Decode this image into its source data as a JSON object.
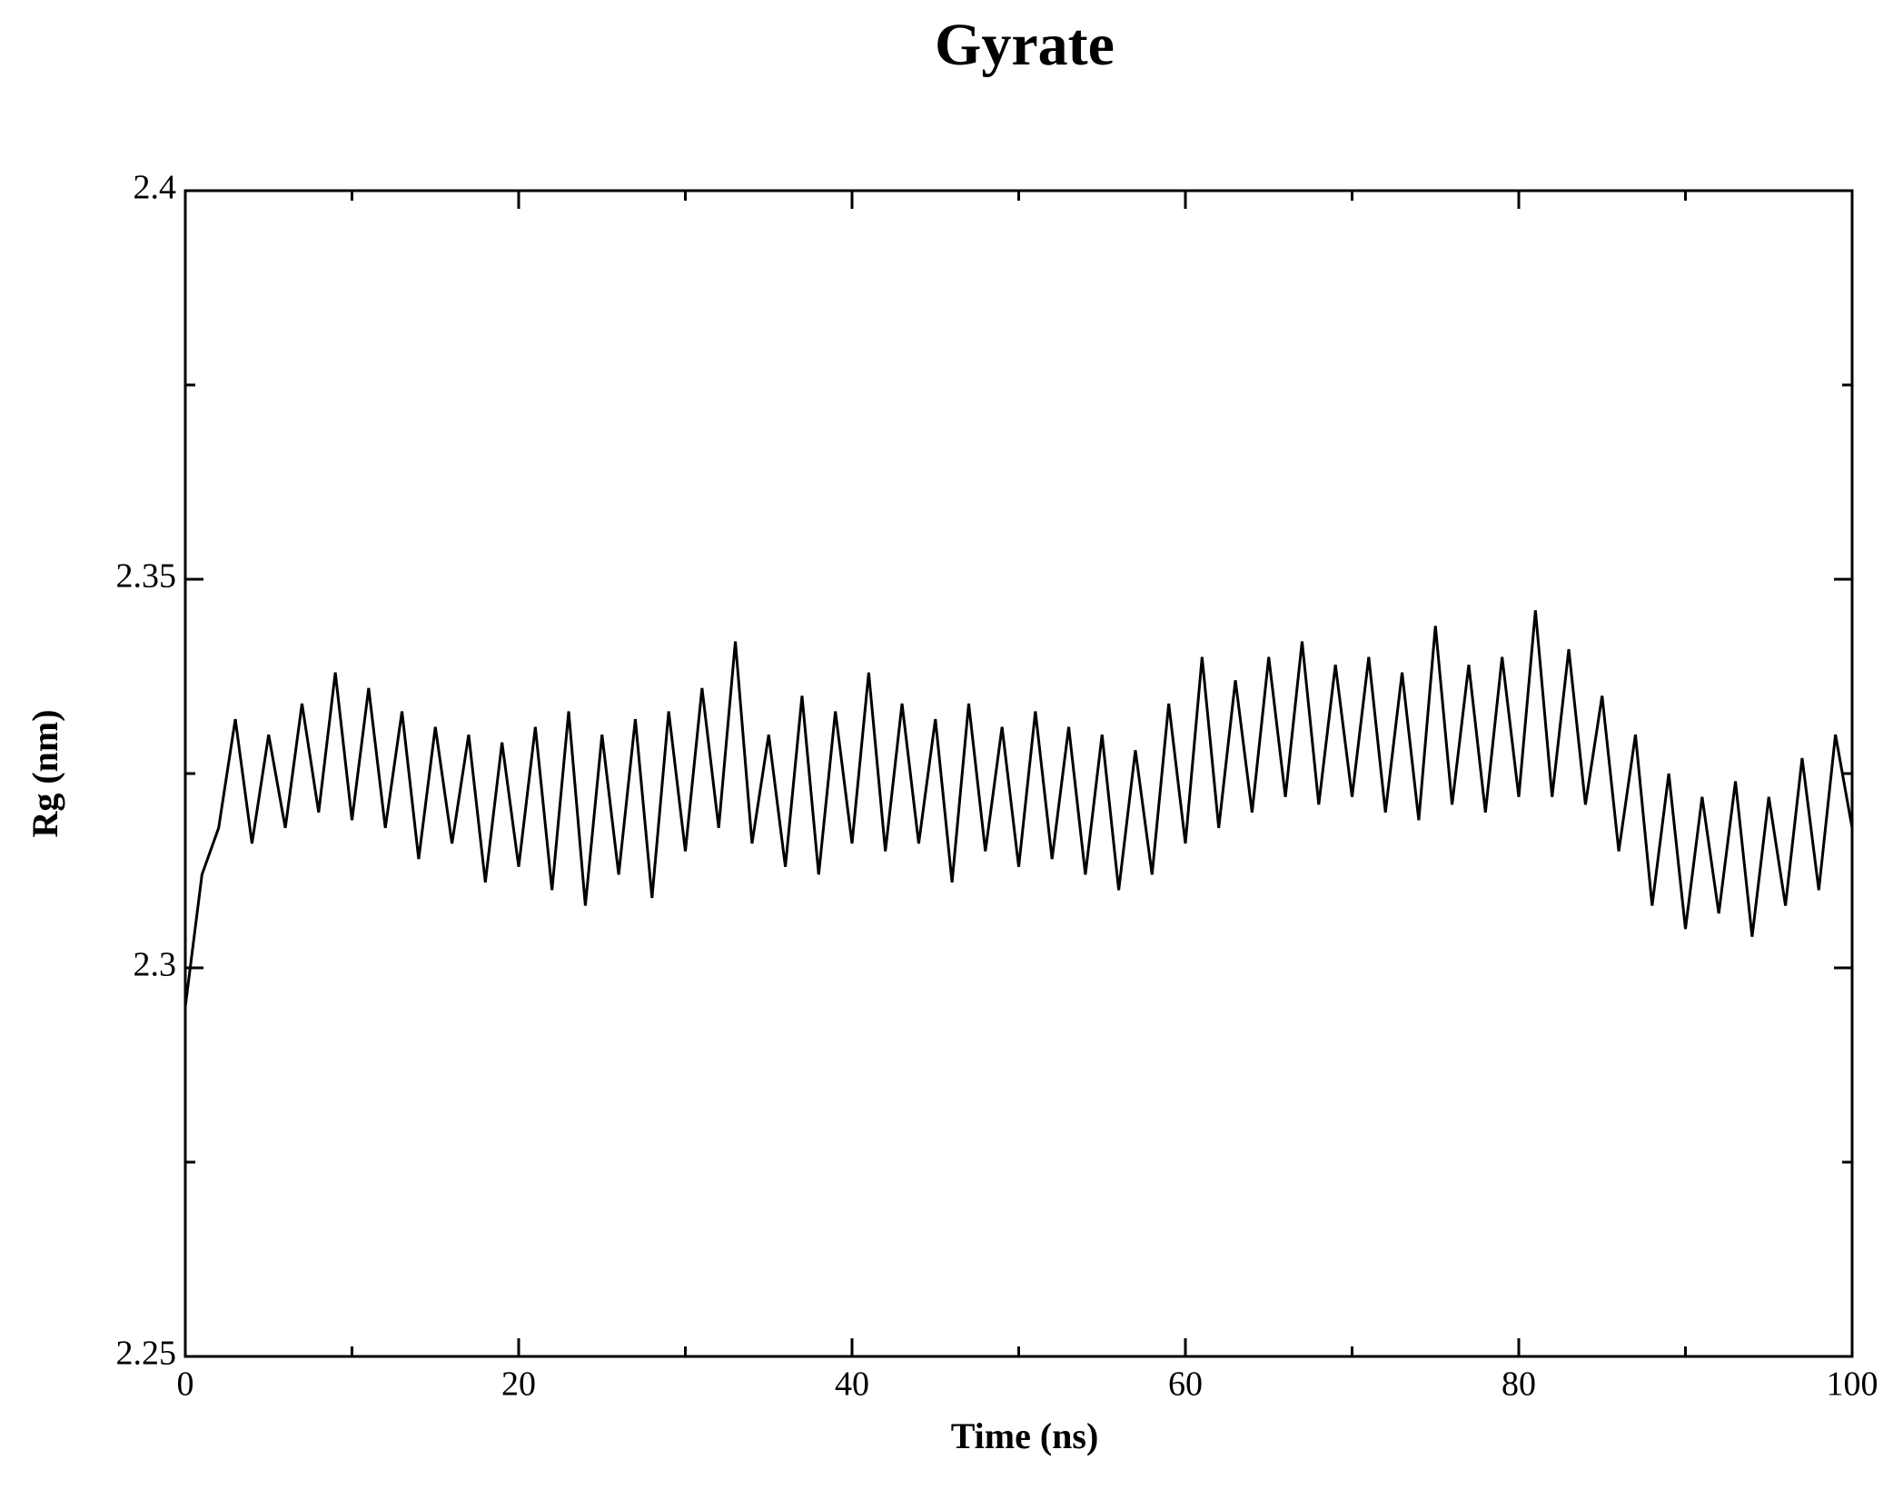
{
  "chart_data": {
    "type": "line",
    "title": "Gyrate",
    "x_label": "Time (ns)",
    "y_label": "Rg (nm)",
    "color": "#000000",
    "xlim": [
      0,
      100
    ],
    "xticks": [
      0,
      20,
      40,
      60,
      80,
      100
    ],
    "xminorticks": [
      10,
      30,
      50,
      70,
      90
    ],
    "ylim": [
      2.25,
      2.4
    ],
    "yticks": [
      2.25,
      2.3,
      2.35,
      2.4
    ],
    "yminorticks": [
      2.275,
      2.325,
      2.375
    ],
    "grid": false,
    "x": [
      0,
      1,
      2,
      3,
      4,
      5,
      6,
      7,
      8,
      9,
      10,
      11,
      12,
      13,
      14,
      15,
      16,
      17,
      18,
      19,
      20,
      21,
      22,
      23,
      24,
      25,
      26,
      27,
      28,
      29,
      30,
      31,
      32,
      33,
      34,
      35,
      36,
      37,
      38,
      39,
      40,
      41,
      42,
      43,
      44,
      45,
      46,
      47,
      48,
      49,
      50,
      51,
      52,
      53,
      54,
      55,
      56,
      57,
      58,
      59,
      60,
      61,
      62,
      63,
      64,
      65,
      66,
      67,
      68,
      69,
      70,
      71,
      72,
      73,
      74,
      75,
      76,
      77,
      78,
      79,
      80,
      81,
      82,
      83,
      84,
      85,
      86,
      87,
      88,
      89,
      90,
      91,
      92,
      93,
      94,
      95,
      96,
      97,
      98,
      99,
      100
    ],
    "values": [
      2.295,
      2.312,
      2.318,
      2.332,
      2.316,
      2.33,
      2.318,
      2.334,
      2.32,
      2.338,
      2.319,
      2.336,
      2.318,
      2.333,
      2.314,
      2.331,
      2.316,
      2.33,
      2.311,
      2.329,
      2.313,
      2.331,
      2.31,
      2.333,
      2.308,
      2.33,
      2.312,
      2.332,
      2.309,
      2.333,
      2.315,
      2.336,
      2.318,
      2.342,
      2.316,
      2.33,
      2.313,
      2.335,
      2.312,
      2.333,
      2.316,
      2.338,
      2.315,
      2.334,
      2.316,
      2.332,
      2.311,
      2.334,
      2.315,
      2.331,
      2.313,
      2.333,
      2.314,
      2.331,
      2.312,
      2.33,
      2.31,
      2.328,
      2.312,
      2.334,
      2.316,
      2.34,
      2.318,
      2.337,
      2.32,
      2.34,
      2.322,
      2.342,
      2.321,
      2.339,
      2.322,
      2.34,
      2.32,
      2.338,
      2.319,
      2.344,
      2.321,
      2.339,
      2.32,
      2.34,
      2.322,
      2.346,
      2.322,
      2.341,
      2.321,
      2.335,
      2.315,
      2.33,
      2.308,
      2.325,
      2.305,
      2.322,
      2.307,
      2.324,
      2.304,
      2.322,
      2.308,
      2.327,
      2.31,
      2.33,
      2.318
    ]
  }
}
